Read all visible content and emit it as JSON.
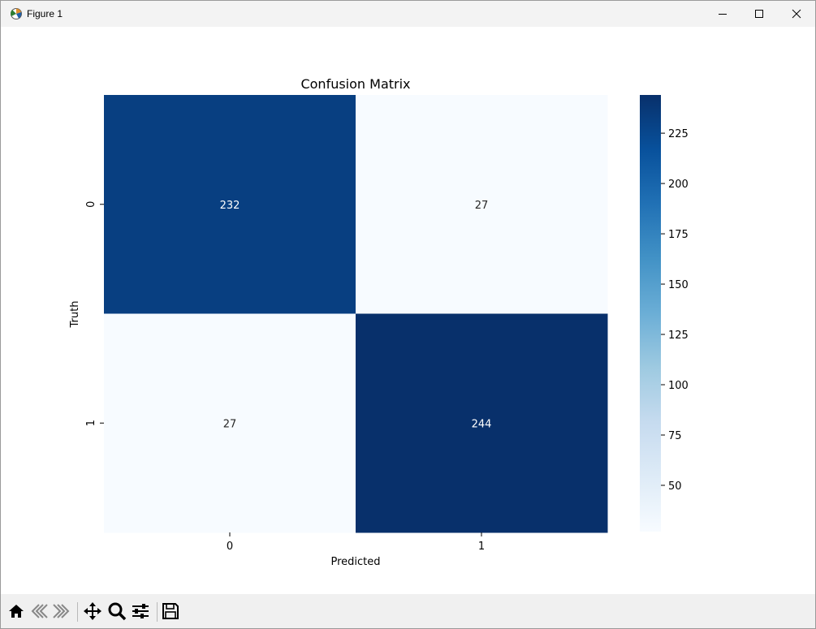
{
  "window": {
    "title": "Figure 1"
  },
  "toolbar": {
    "tools": [
      {
        "name": "home-icon",
        "label": "Home"
      },
      {
        "name": "back-icon",
        "label": "Back"
      },
      {
        "name": "forward-icon",
        "label": "Forward"
      },
      {
        "name": "pan-icon",
        "label": "Pan"
      },
      {
        "name": "zoom-icon",
        "label": "Zoom"
      },
      {
        "name": "configure-subplots-icon",
        "label": "Configure subplots"
      },
      {
        "name": "save-icon",
        "label": "Save"
      }
    ]
  },
  "chart_data": {
    "type": "heatmap",
    "title": "Confusion Matrix",
    "xlabel": "Predicted",
    "ylabel": "Truth",
    "x_categories": [
      "0",
      "1"
    ],
    "y_categories": [
      "0",
      "1"
    ],
    "matrix": [
      [
        232,
        27
      ],
      [
        27,
        244
      ]
    ],
    "colormap": "Blues",
    "value_range": [
      27,
      244
    ],
    "colorbar_ticks": [
      50,
      75,
      100,
      125,
      150,
      175,
      200,
      225
    ],
    "colors": {
      "min": "#f7fbff",
      "max": "#08306b",
      "high_cell": "#0b3d7e"
    }
  }
}
